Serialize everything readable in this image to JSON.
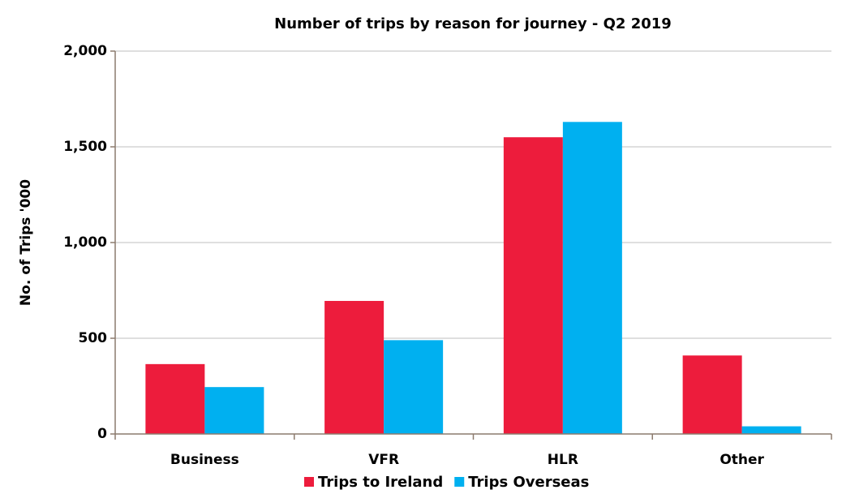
{
  "chart_data": {
    "type": "bar",
    "title": "Number of trips by reason for journey - Q2 2019",
    "y_label": "No. of Trips '000",
    "categories": [
      "Business",
      "VFR",
      "HLR",
      "Other"
    ],
    "series": [
      {
        "name": "Trips to Ireland",
        "color": "#ed1c3c",
        "values": [
          365,
          695,
          1550,
          410
        ]
      },
      {
        "name": "Trips Overseas",
        "color": "#00b0f0",
        "values": [
          245,
          490,
          1630,
          40
        ]
      }
    ],
    "ylim": [
      0,
      2000
    ],
    "yticks": [
      0,
      500,
      {
        "value": 1000,
        "label": "1,000"
      },
      {
        "value": 1500,
        "label": "1,500"
      },
      {
        "value": 2000,
        "label": "2,000"
      }
    ],
    "grid": true,
    "legend": "bottom"
  }
}
